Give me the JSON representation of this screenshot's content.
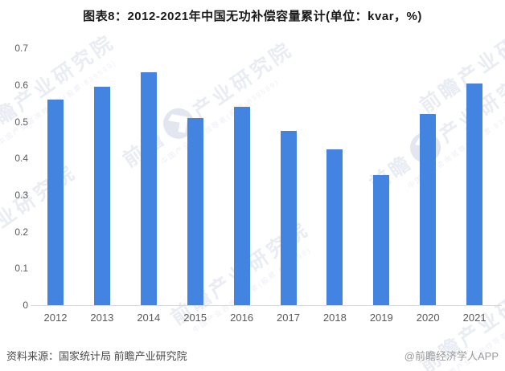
{
  "title": {
    "text": "图表8：2012-2021年中国无功补偿容量累计(单位：kvar，%)"
  },
  "chart_data": {
    "type": "bar",
    "title": "图表8：2012-2021年中国无功补偿容量累计(单位：kvar，%)",
    "unit_label": "kvar，%",
    "categories": [
      "2012",
      "2013",
      "2014",
      "2015",
      "2016",
      "2017",
      "2018",
      "2019",
      "2020",
      "2021"
    ],
    "values": [
      0.56,
      0.595,
      0.635,
      0.51,
      0.54,
      0.475,
      0.425,
      0.355,
      0.52,
      0.605
    ],
    "xlabel": "",
    "ylabel": "",
    "ylim": [
      0,
      0.7
    ],
    "yticks": [
      "0",
      "0.1",
      "0.2",
      "0.3",
      "0.4",
      "0.5",
      "0.6",
      "0.7"
    ],
    "grid": false,
    "legend_position": "none",
    "bar_color": "#4384E1"
  },
  "footer": {
    "source": "资料来源：国家统计局 前瞻产业研究院",
    "credit": "@前瞻经济学人APP"
  },
  "watermark": {
    "brand_prefix": "前瞻",
    "brand_suffix": "产业研究院",
    "tagline": "中国产业咨询领导者(股票:839599)",
    "logo_icon": "qianzhan-circle-logo"
  },
  "colors": {
    "bar": "#4384E1",
    "axis_text": "#595959",
    "axis_line": "#D9D9D9",
    "title_text": "#1A1A1A",
    "source_text": "#4A4A4A",
    "credit_text": "#9A9A9A",
    "watermark": "#E9ECF3"
  }
}
